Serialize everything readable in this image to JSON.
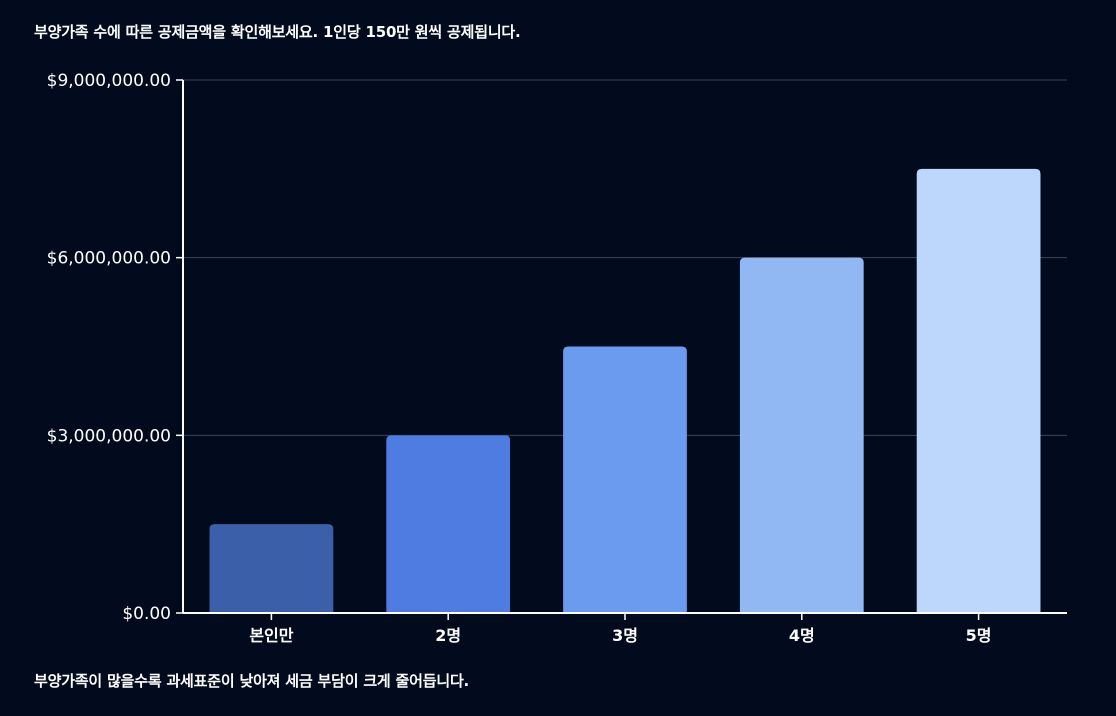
{
  "header": {
    "text": "부양가족 수에 따른 공제금액을 확인해보세요. 1인당 150만 원씩 공제됩니다."
  },
  "footer": {
    "text": "부양가족이 많을수록 과세표준이 낮아져 세금 부담이 크게 줄어듭니다."
  },
  "chart_data": {
    "type": "bar",
    "title": "",
    "xlabel": "",
    "ylabel": "",
    "categories": [
      "본인만",
      "2명",
      "3명",
      "4명",
      "5명"
    ],
    "values": [
      1500000,
      3000000,
      4500000,
      6000000,
      7500000
    ],
    "ylim": [
      0,
      9000000
    ],
    "yticks": [
      0,
      3000000,
      6000000,
      9000000
    ],
    "ytick_labels": [
      "$0.00",
      "$3,000,000.00",
      "$6,000,000.00",
      "$9,000,000.00"
    ],
    "grid": true,
    "colors": [
      "#3b5fa8",
      "#4f7ce0",
      "#6b9bee",
      "#92b8f4",
      "#bdd6fb"
    ],
    "grid_color": "#3a4558",
    "axis_color": "#ffffff"
  }
}
